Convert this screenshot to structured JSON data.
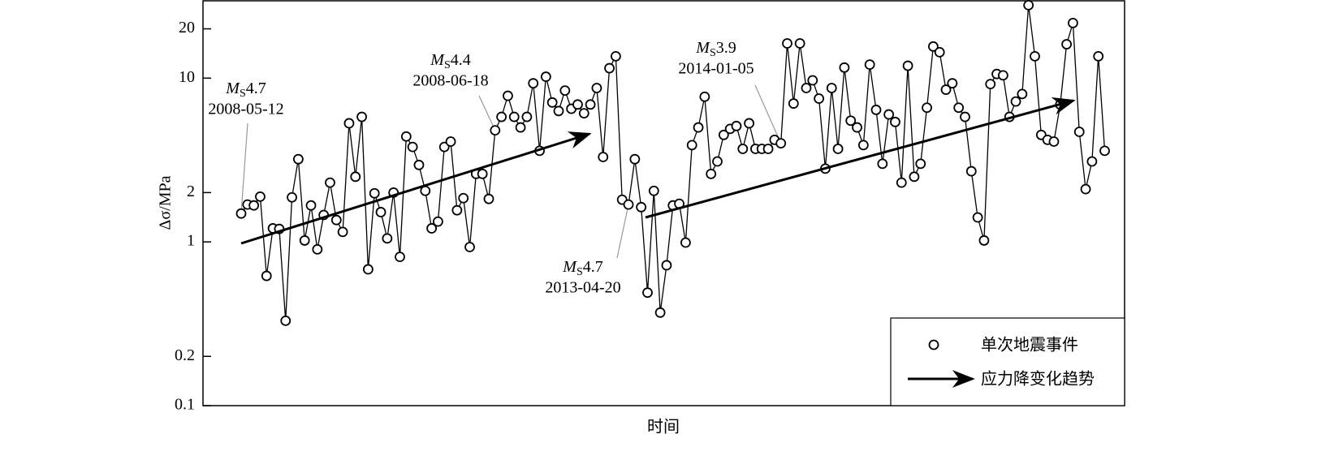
{
  "chart_data": {
    "type": "line",
    "y_label": "Δσ/MPa",
    "x_label": "时间",
    "log_y": true,
    "ylim": [
      0.1,
      30
    ],
    "yticks": [
      0.1,
      0.2,
      1,
      2,
      10,
      20
    ],
    "legend_position": "lower right",
    "series": [
      {
        "name": "单次地震事件",
        "color": "#000000",
        "values": [
          1.49,
          1.69,
          1.67,
          1.89,
          0.62,
          1.21,
          1.2,
          0.33,
          1.87,
          3.2,
          1.02,
          1.67,
          0.9,
          1.46,
          2.3,
          1.36,
          1.15,
          5.3,
          2.5,
          5.8,
          0.68,
          1.98,
          1.52,
          1.05,
          2.0,
          0.81,
          4.4,
          3.8,
          2.95,
          2.05,
          1.21,
          1.33,
          3.8,
          4.1,
          1.56,
          1.85,
          0.93,
          2.6,
          2.6,
          1.83,
          4.8,
          5.8,
          7.8,
          5.8,
          5.0,
          5.8,
          9.3,
          3.6,
          10.2,
          7.1,
          6.3,
          8.4,
          6.5,
          6.9,
          6.1,
          6.9,
          8.7,
          3.3,
          11.5,
          13.6,
          1.81,
          1.69,
          3.2,
          1.63,
          0.49,
          2.05,
          0.37,
          0.72,
          1.67,
          1.71,
          0.99,
          3.9,
          5.0,
          7.7,
          2.6,
          3.1,
          4.5,
          4.9,
          5.1,
          3.7,
          5.3,
          3.7,
          3.7,
          3.7,
          4.2,
          4.0,
          16.3,
          7.0,
          16.3,
          8.7,
          9.7,
          7.5,
          2.8,
          8.7,
          3.7,
          11.6,
          5.5,
          5.0,
          3.9,
          12.1,
          6.4,
          3.0,
          6.0,
          5.4,
          2.3,
          11.9,
          2.5,
          3.0,
          6.6,
          15.6,
          14.4,
          8.5,
          9.3,
          6.6,
          5.8,
          2.7,
          1.41,
          1.02,
          9.2,
          10.6,
          10.4,
          5.8,
          7.2,
          8.0,
          27.9,
          13.6,
          4.5,
          4.2,
          4.1,
          6.9,
          16.1,
          21.7,
          4.7,
          2.1,
          3.1,
          13.6,
          3.6
        ]
      }
    ],
    "trend_legend": "应力降变化趋势",
    "annotations": [
      {
        "label": "MS4.7",
        "date": "2008-05-12"
      },
      {
        "label": "MS4.4",
        "date": "2008-06-18"
      },
      {
        "label": "MS4.7",
        "date": "2013-04-20"
      },
      {
        "label": "MS3.9",
        "date": "2014-01-05"
      }
    ]
  }
}
